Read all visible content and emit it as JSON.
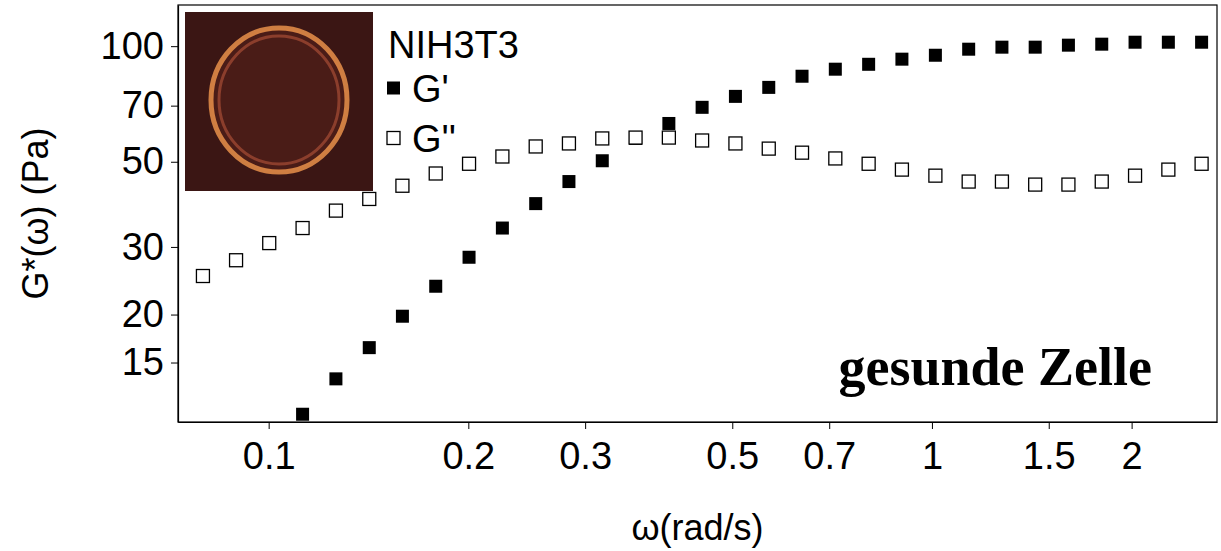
{
  "chart_data": {
    "type": "scatter",
    "x_label": "ω(rad/s)",
    "y_label": "G*(ω) (Pa)",
    "log": true,
    "grid": false,
    "legend": "upper left",
    "xlim": [
      0.073,
      2.69
    ],
    "ylim": [
      10.5,
      128
    ],
    "xticks": [
      0.1,
      0.2,
      0.3,
      0.5,
      0.7,
      1,
      1.5,
      2
    ],
    "yticks": [
      15,
      20,
      30,
      50,
      70,
      100
    ],
    "annotations": [
      {
        "text": "NIH3T3"
      },
      {
        "text": "gesunde Zelle"
      }
    ],
    "series": [
      {
        "name": "G'",
        "color": "#000000",
        "marker": "square-filled",
        "x": [
          0.1125,
          0.1263,
          0.1418,
          0.1591,
          0.1786,
          0.2005,
          0.2251,
          0.2527,
          0.2836,
          0.3184,
          0.3574,
          0.4012,
          0.4503,
          0.5055,
          0.5675,
          0.637,
          0.715,
          0.8027,
          0.901,
          1.012,
          1.136,
          1.275,
          1.431,
          1.606,
          1.803,
          2.024,
          2.272,
          2.55
        ],
        "values": [
          11.0,
          13.6,
          16.4,
          19.8,
          23.7,
          28.2,
          33.6,
          38.9,
          44.4,
          50.3,
          57.5,
          62.9,
          69.3,
          74.0,
          78.1,
          83.5,
          87.1,
          89.7,
          92.5,
          94.7,
          98.2,
          99.4,
          99.4,
          100.6,
          101.2,
          102.4,
          102.4,
          102.4
        ]
      },
      {
        "name": "G''",
        "color": "#000000",
        "marker": "square-open",
        "x": [
          0.0796,
          0.0893,
          0.1002,
          0.1125,
          0.1263,
          0.1418,
          0.1591,
          0.1786,
          0.2005,
          0.2251,
          0.2527,
          0.2836,
          0.3184,
          0.3574,
          0.4012,
          0.4503,
          0.5055,
          0.5675,
          0.637,
          0.715,
          0.8027,
          0.901,
          1.012,
          1.136,
          1.275,
          1.431,
          1.606,
          1.803,
          2.024,
          2.272,
          2.55
        ],
        "values": [
          25.2,
          27.7,
          30.7,
          33.6,
          37.3,
          40.0,
          43.3,
          46.6,
          49.4,
          51.6,
          54.8,
          55.8,
          57.5,
          57.8,
          57.8,
          56.8,
          55.8,
          54.1,
          52.8,
          51.0,
          49.4,
          47.7,
          46.0,
          44.4,
          44.4,
          43.6,
          43.6,
          44.4,
          46.0,
          47.7,
          49.4
        ]
      }
    ]
  }
}
